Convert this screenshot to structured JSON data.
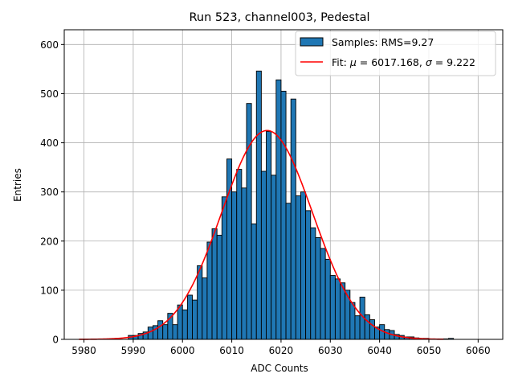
{
  "chart_data": {
    "type": "bar",
    "title": "Run 523, channel003, Pedestal",
    "xlabel": "ADC Counts",
    "ylabel": "Entries",
    "xlim": [
      5976,
      6065
    ],
    "ylim": [
      0,
      630
    ],
    "xticks": [
      5980,
      5990,
      6000,
      6010,
      6020,
      6030,
      6040,
      6050,
      6060
    ],
    "yticks": [
      0,
      100,
      200,
      300,
      400,
      500,
      600
    ],
    "grid": true,
    "legend_position": "top-right",
    "colors": {
      "bar": "#1f77b4",
      "bar_edge": "#000000",
      "fit": "#ff0000",
      "grid": "#b0b0b0"
    },
    "histogram": {
      "name": "Samples: RMS=9.27",
      "bin_edges_start": 5979,
      "bin_width": 1,
      "counts": [
        0,
        0,
        0,
        0,
        0,
        0,
        0,
        0,
        0,
        0,
        8,
        8,
        12,
        15,
        25,
        28,
        38,
        30,
        53,
        30,
        70,
        60,
        90,
        80,
        150,
        125,
        198,
        225,
        212,
        290,
        367,
        300,
        346,
        308,
        480,
        235,
        546,
        342,
        423,
        334,
        528,
        505,
        277,
        489,
        292,
        300,
        262,
        227,
        207,
        185,
        163,
        130,
        123,
        115,
        100,
        75,
        48,
        86,
        50,
        40,
        25,
        30,
        20,
        18,
        10,
        8,
        5,
        5,
        3,
        2,
        2,
        1,
        1,
        1,
        1,
        2
      ],
      "values_are_estimates": true
    },
    "fit": {
      "name": "Fit: μ = 6017.168, σ = 9.222",
      "mu": 6017.168,
      "sigma": 9.222,
      "amplitude": 425,
      "x_range": [
        5979,
        6053
      ]
    },
    "legend_entries": [
      {
        "label_prefix": "Samples: RMS=9.27"
      },
      {
        "label_prefix": "Fit: ",
        "mu_symbol": "μ",
        "mu_text": " = 6017.168, ",
        "sigma_symbol": "σ",
        "sigma_text": " = 9.222"
      }
    ]
  }
}
